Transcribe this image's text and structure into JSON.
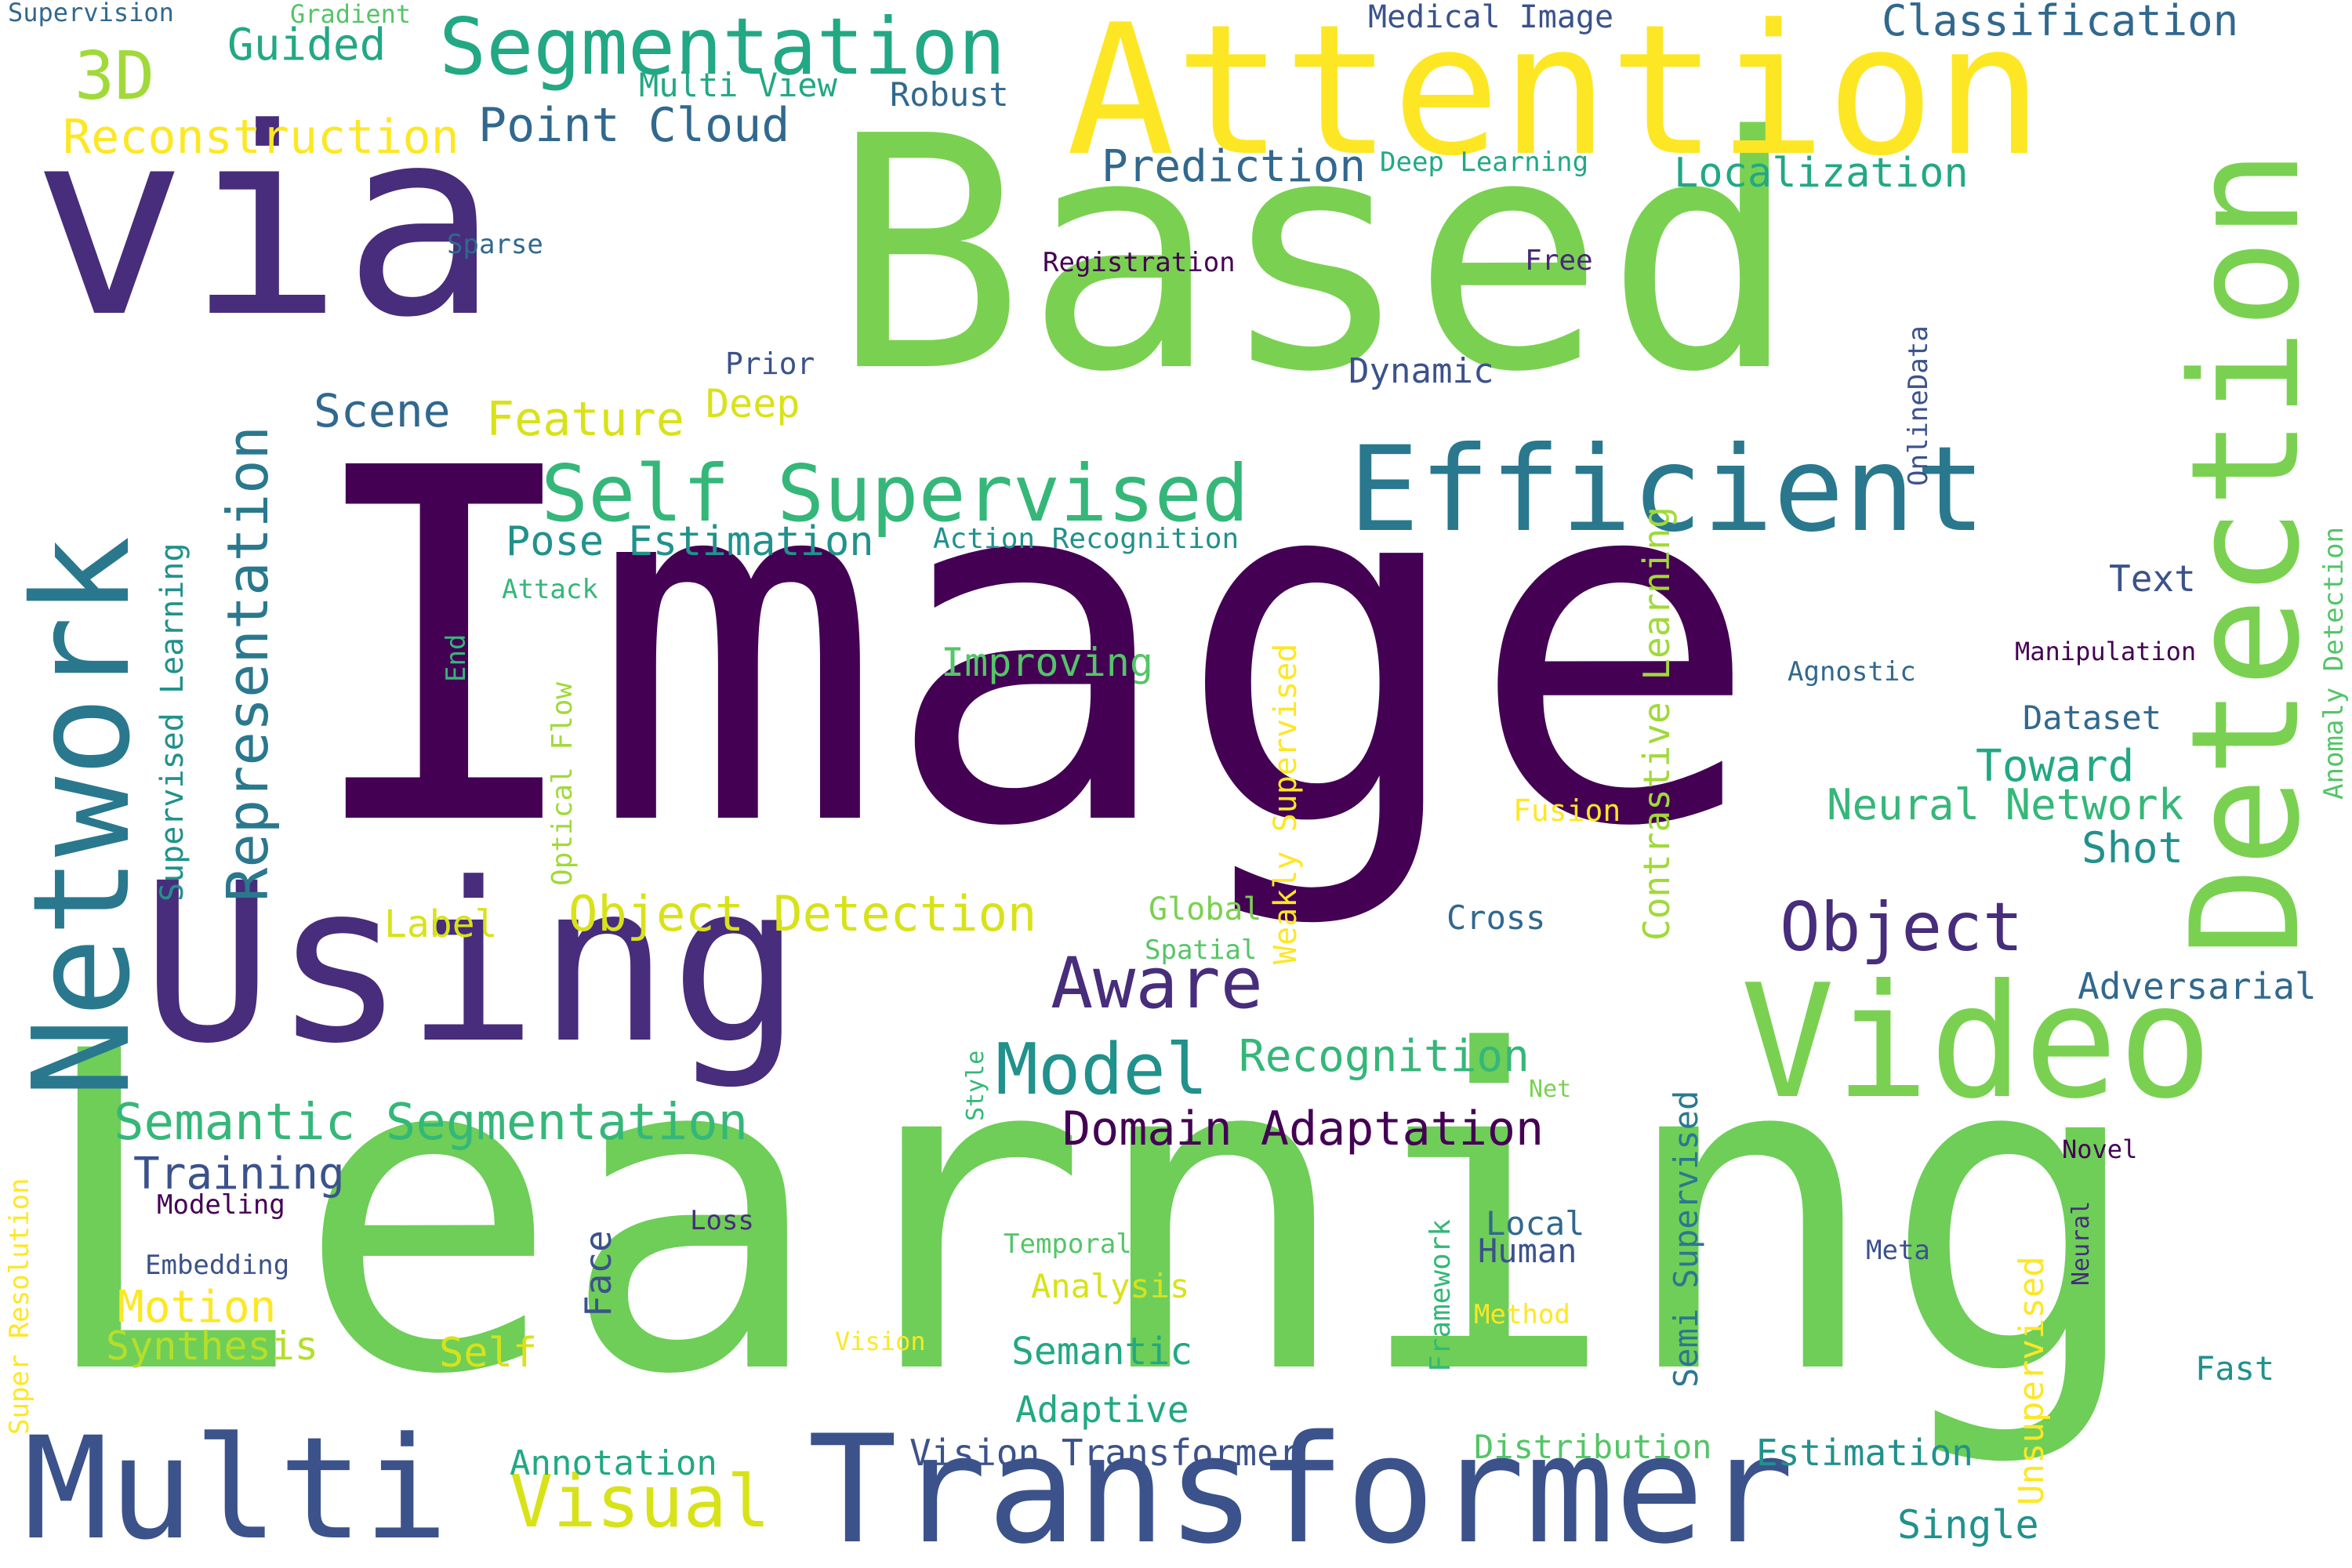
{
  "words": [
    {
      "text": "Image",
      "color": "#440154",
      "rotated": false
    },
    {
      "text": "Learning",
      "color": "#6ece58",
      "rotated": false
    },
    {
      "text": "Based",
      "color": "#7ad151",
      "rotated": false
    },
    {
      "text": "via",
      "color": "#472d7b",
      "rotated": false
    },
    {
      "text": "Using",
      "color": "#472d7b",
      "rotated": false
    },
    {
      "text": "Attention",
      "color": "#fde725",
      "rotated": false
    },
    {
      "text": "Network",
      "color": "#2a788e",
      "rotated": true
    },
    {
      "text": "Detection",
      "color": "#7ad151",
      "rotated": true
    },
    {
      "text": "Video",
      "color": "#7ad151",
      "rotated": false
    },
    {
      "text": "Transformer",
      "color": "#3b528b",
      "rotated": false
    },
    {
      "text": "Multi",
      "color": "#3b528b",
      "rotated": false
    },
    {
      "text": "Efficient",
      "color": "#2a788e",
      "rotated": false
    },
    {
      "text": "Segmentation",
      "color": "#22a884",
      "rotated": false
    },
    {
      "text": "Self Supervised",
      "color": "#35b779",
      "rotated": false
    },
    {
      "text": "Representation",
      "color": "#2a788e",
      "rotated": true
    },
    {
      "text": "Object",
      "color": "#472d7b",
      "rotated": false
    },
    {
      "text": "Model",
      "color": "#21918c",
      "rotated": false
    },
    {
      "text": "Aware",
      "color": "#472d7b",
      "rotated": false
    },
    {
      "text": "Visual",
      "color": "#d8e219",
      "rotated": false
    },
    {
      "text": "3D",
      "color": "#a0da39",
      "rotated": false
    },
    {
      "text": "Semantic Segmentation",
      "color": "#35b779",
      "rotated": false
    },
    {
      "text": "Domain Adaptation",
      "color": "#440154",
      "rotated": false
    },
    {
      "text": "Object Detection",
      "color": "#d8e219",
      "rotated": false
    },
    {
      "text": "Point Cloud",
      "color": "#31688e",
      "rotated": false
    },
    {
      "text": "Reconstruction",
      "color": "#fde725",
      "rotated": false
    },
    {
      "text": "Classification",
      "color": "#31688e",
      "rotated": false
    },
    {
      "text": "Feature",
      "color": "#d8e219",
      "rotated": false
    },
    {
      "text": "Scene",
      "color": "#31688e",
      "rotated": false
    },
    {
      "text": "Prediction",
      "color": "#31688e",
      "rotated": false
    },
    {
      "text": "Localization",
      "color": "#22a884",
      "rotated": false
    },
    {
      "text": "Recognition",
      "color": "#35b779",
      "rotated": false
    },
    {
      "text": "Pose Estimation",
      "color": "#21918c",
      "rotated": false
    },
    {
      "text": "Guided",
      "color": "#22a884",
      "rotated": false
    },
    {
      "text": "Training",
      "color": "#3b528b",
      "rotated": false
    },
    {
      "text": "Motion",
      "color": "#fde725",
      "rotated": false
    },
    {
      "text": "Synthesis",
      "color": "#b5de2b",
      "rotated": false
    },
    {
      "text": "Neural Network",
      "color": "#35b779",
      "rotated": false
    },
    {
      "text": "Toward",
      "color": "#22a884",
      "rotated": false
    },
    {
      "text": "Shot",
      "color": "#21918c",
      "rotated": false
    },
    {
      "text": "Adversarial",
      "color": "#31688e",
      "rotated": false
    },
    {
      "text": "Vision Transformer",
      "color": "#3b528b",
      "rotated": false
    },
    {
      "text": "Annotation",
      "color": "#22a884",
      "rotated": false
    },
    {
      "text": "Distribution",
      "color": "#54c568",
      "rotated": false
    },
    {
      "text": "Estimation",
      "color": "#21918c",
      "rotated": false
    },
    {
      "text": "Single",
      "color": "#21918c",
      "rotated": false
    },
    {
      "text": "Semantic",
      "color": "#22a884",
      "rotated": false
    },
    {
      "text": "Adaptive",
      "color": "#22a884",
      "rotated": false
    },
    {
      "text": "Improving",
      "color": "#54c568",
      "rotated": false
    },
    {
      "text": "Label",
      "color": "#d8e219",
      "rotated": false
    },
    {
      "text": "Deep",
      "color": "#d8e219",
      "rotated": false
    },
    {
      "text": "Self",
      "color": "#d8e219",
      "rotated": false
    },
    {
      "text": "Analysis",
      "color": "#d8e219",
      "rotated": false
    },
    {
      "text": "Dataset",
      "color": "#31688e",
      "rotated": false
    },
    {
      "text": "Text",
      "color": "#3b528b",
      "rotated": false
    },
    {
      "text": "Dynamic",
      "color": "#3b528b",
      "rotated": false
    },
    {
      "text": "Cross",
      "color": "#31688e",
      "rotated": false
    },
    {
      "text": "Human",
      "color": "#3b528b",
      "rotated": false
    },
    {
      "text": "Local",
      "color": "#31688e",
      "rotated": false
    },
    {
      "text": "Fast",
      "color": "#21918c",
      "rotated": false
    },
    {
      "text": "Face",
      "color": "#3b528b",
      "rotated": true
    },
    {
      "text": "Supervised Learning",
      "color": "#21918c",
      "rotated": true
    },
    {
      "text": "Weakly Supervised",
      "color": "#fde725",
      "rotated": true
    },
    {
      "text": "Contrastive Learning",
      "color": "#a0da39",
      "rotated": true
    },
    {
      "text": "Semi Supervised",
      "color": "#2a788e",
      "rotated": true
    },
    {
      "text": "Unsupervised",
      "color": "#fde725",
      "rotated": true
    },
    {
      "text": "Anomaly Detection",
      "color": "#54c568",
      "rotated": true
    },
    {
      "text": "Framework",
      "color": "#35b779",
      "rotated": true
    },
    {
      "text": "Super Resolution",
      "color": "#fde725",
      "rotated": true
    },
    {
      "text": "Optical Flow",
      "color": "#a0da39",
      "rotated": true
    },
    {
      "text": "OnlineData",
      "color": "#3b528b",
      "rotated": true
    },
    {
      "text": "Neural",
      "color": "#472d7b",
      "rotated": true
    },
    {
      "text": "End",
      "color": "#35b779",
      "rotated": true
    },
    {
      "text": "Style",
      "color": "#35b779",
      "rotated": true
    },
    {
      "text": "Medical Image",
      "color": "#3b528b",
      "rotated": false
    },
    {
      "text": "Multi View",
      "color": "#22a884",
      "rotated": false
    },
    {
      "text": "Robust",
      "color": "#31688e",
      "rotated": false
    },
    {
      "text": "Deep Learning",
      "color": "#22a884",
      "rotated": false
    },
    {
      "text": "Registration",
      "color": "#440154",
      "rotated": false
    },
    {
      "text": "Free",
      "color": "#482878",
      "rotated": false
    },
    {
      "text": "Prior",
      "color": "#3b528b",
      "rotated": false
    },
    {
      "text": "Sparse",
      "color": "#31688e",
      "rotated": false
    },
    {
      "text": "Action Recognition",
      "color": "#21918c",
      "rotated": false
    },
    {
      "text": "Attack",
      "color": "#35b779",
      "rotated": false
    },
    {
      "text": "Agnostic",
      "color": "#31688e",
      "rotated": false
    },
    {
      "text": "Manipulation",
      "color": "#440154",
      "rotated": false
    },
    {
      "text": "Fusion",
      "color": "#fde725",
      "rotated": false
    },
    {
      "text": "Global",
      "color": "#7ad151",
      "rotated": false
    },
    {
      "text": "Spatial",
      "color": "#54c568",
      "rotated": false
    },
    {
      "text": "Net",
      "color": "#7ad151",
      "rotated": false
    },
    {
      "text": "Modeling",
      "color": "#440154",
      "rotated": false
    },
    {
      "text": "Embedding",
      "color": "#3b528b",
      "rotated": false
    },
    {
      "text": "Loss",
      "color": "#472d7b",
      "rotated": false
    },
    {
      "text": "Temporal",
      "color": "#54c568",
      "rotated": false
    },
    {
      "text": "Vision",
      "color": "#fde725",
      "rotated": false
    },
    {
      "text": "Method",
      "color": "#fde725",
      "rotated": false
    },
    {
      "text": "Novel",
      "color": "#440154",
      "rotated": false
    },
    {
      "text": "Meta",
      "color": "#3b528b",
      "rotated": false
    },
    {
      "text": "Supervision",
      "color": "#31688e",
      "rotated": false
    },
    {
      "text": "Gradient",
      "color": "#54c568",
      "rotated": false
    }
  ]
}
